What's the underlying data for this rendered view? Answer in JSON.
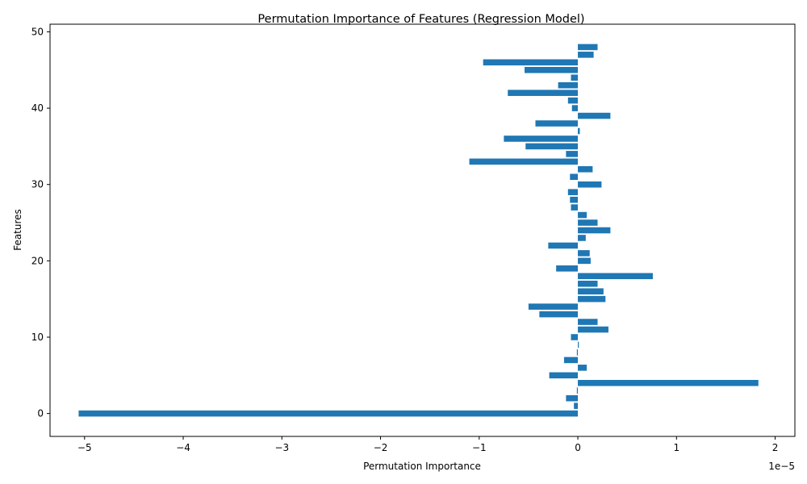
{
  "chart_data": {
    "type": "bar",
    "orientation": "horizontal",
    "title": "Permutation Importance of Features (Regression Model)",
    "xlabel": "Permutation Importance",
    "ylabel": "Features",
    "x_scale_label": "1e−5",
    "xlim": [
      -5.35,
      2.2
    ],
    "ylim": [
      -3,
      51
    ],
    "xticks": [
      -5,
      -4,
      -3,
      -2,
      -1,
      0,
      1,
      2
    ],
    "xtick_labels": [
      "−5",
      "−4",
      "−3",
      "−2",
      "−1",
      "0",
      "1",
      "2"
    ],
    "yticks": [
      0,
      10,
      20,
      30,
      40,
      50
    ],
    "ytick_labels": [
      "0",
      "10",
      "20",
      "30",
      "40",
      "50"
    ],
    "bar_color": "#1f77b4",
    "grid": false,
    "features": [
      0,
      1,
      2,
      3,
      4,
      5,
      6,
      7,
      8,
      9,
      10,
      11,
      12,
      13,
      14,
      15,
      16,
      17,
      18,
      19,
      20,
      21,
      22,
      23,
      24,
      25,
      26,
      27,
      28,
      29,
      30,
      31,
      32,
      33,
      34,
      35,
      36,
      37,
      38,
      39,
      40,
      41,
      42,
      43,
      44,
      45,
      46,
      47,
      48
    ],
    "values": [
      -5.06,
      -0.04,
      -0.12,
      -0.01,
      1.83,
      -0.29,
      0.09,
      -0.14,
      -0.01,
      0.01,
      -0.07,
      0.31,
      0.2,
      -0.39,
      -0.5,
      0.28,
      0.26,
      0.2,
      0.76,
      -0.22,
      0.13,
      0.12,
      -0.3,
      0.08,
      0.33,
      0.2,
      0.09,
      -0.07,
      -0.08,
      -0.1,
      0.24,
      -0.08,
      0.15,
      -1.1,
      -0.12,
      -0.53,
      -0.75,
      0.02,
      -0.43,
      0.33,
      -0.06,
      -0.1,
      -0.71,
      -0.2,
      -0.07,
      -0.54,
      -0.96,
      0.16,
      0.2
    ]
  }
}
